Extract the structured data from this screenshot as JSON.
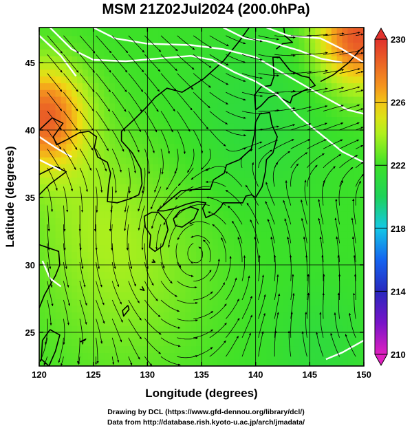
{
  "title": "MSM 21Z02Jul2024 (200.0hPa)",
  "x_axis": {
    "label": "Longitude (degrees)",
    "min": 120,
    "max": 150,
    "ticks": [
      120,
      125,
      130,
      135,
      140,
      145,
      150
    ],
    "tick_labels": [
      "120",
      "125",
      "130",
      "135",
      "140",
      "145",
      "150"
    ]
  },
  "y_axis": {
    "label": "Latitude  (degrees)",
    "min": 22.5,
    "max": 47.6,
    "ticks": [
      25,
      30,
      35,
      40,
      45
    ],
    "tick_labels": [
      "25",
      "30",
      "35",
      "40",
      "45"
    ]
  },
  "colorbar": {
    "min": 210,
    "max": 230,
    "ticks": [
      210,
      214,
      218,
      222,
      226,
      230
    ],
    "tick_labels": [
      "210",
      "214",
      "218",
      "222",
      "226",
      "230"
    ],
    "colors": [
      "#e020c0",
      "#5020c0",
      "#1060f0",
      "#10d0e0",
      "#20d060",
      "#40e020",
      "#b0f020",
      "#f0e010",
      "#f09020",
      "#e03030"
    ]
  },
  "field": {
    "vortex_center": [
      134.5,
      30.8
    ],
    "warm_spots": [
      {
        "lon": 120.5,
        "lat": 41.0,
        "value": 228.5
      },
      {
        "lon": 149.5,
        "lat": 47.0,
        "value": 229.0
      }
    ]
  },
  "credits": {
    "line1": "Drawing by DCL (https://www.gfd-dennou.org/library/dcl/)",
    "line2": "Data from http://database.rish.kyoto-u.ac.jp/arch/jmadata/"
  }
}
